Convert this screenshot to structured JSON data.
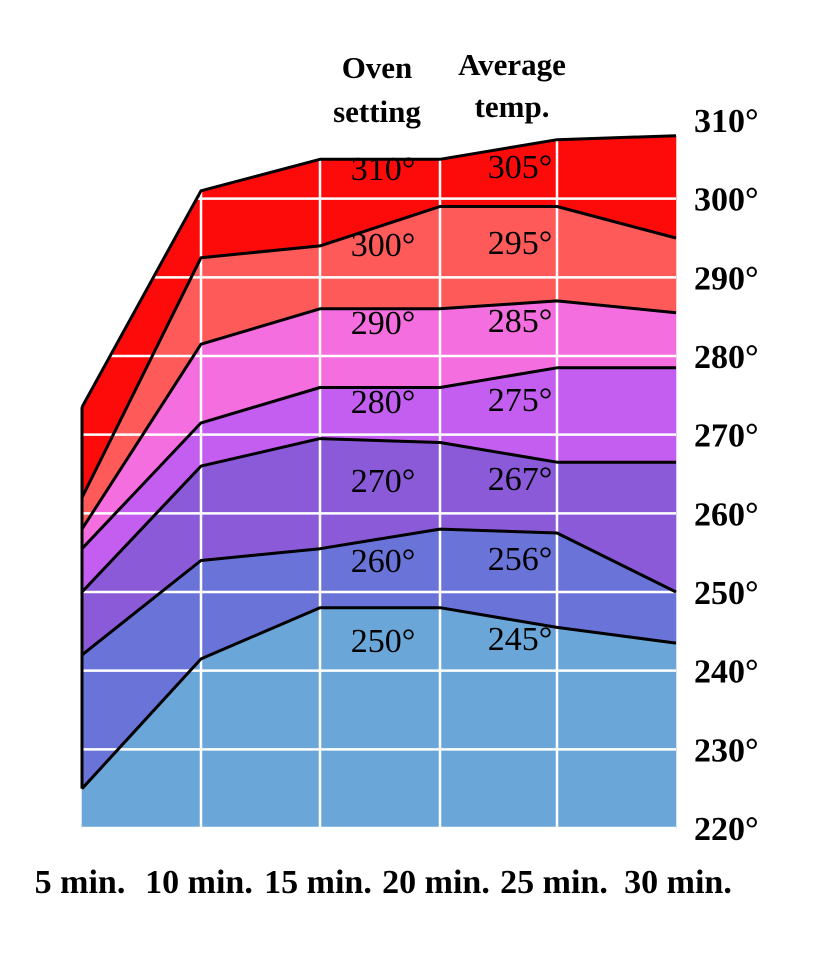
{
  "chart_data": {
    "type": "area",
    "title": "",
    "xlabel": "",
    "ylabel": "",
    "x": [
      "5 min.",
      "10 min.",
      "15 min.",
      "20 min.",
      "25 min.",
      "30 min."
    ],
    "ylim": [
      220,
      310
    ],
    "y_ticks": [
      220,
      230,
      240,
      250,
      260,
      270,
      280,
      290,
      300,
      310
    ],
    "y_tick_labels": [
      "220°",
      "230°",
      "240°",
      "250°",
      "260°",
      "270°",
      "280°",
      "290°",
      "300°",
      "310°"
    ],
    "column_headers": {
      "oven_setting_line1": "Oven",
      "oven_setting_line2": "setting",
      "average_temp_line1": "Average",
      "average_temp_line2": "temp."
    },
    "grid": true,
    "series": [
      {
        "oven_setting": "250°",
        "average_temp": "245°",
        "color": "#6aa6d8",
        "values": [
          225,
          241.5,
          248,
          248,
          245.5,
          243.5
        ]
      },
      {
        "oven_setting": "260°",
        "average_temp": "256°",
        "color": "#6a74d8",
        "values": [
          242,
          254,
          255.5,
          258,
          257.5,
          250
        ]
      },
      {
        "oven_setting": "270°",
        "average_temp": "267°",
        "color": "#8a5ad8",
        "values": [
          250,
          266,
          269.5,
          269,
          266.5,
          266.5
        ]
      },
      {
        "oven_setting": "280°",
        "average_temp": "275°",
        "color": "#c35ef0",
        "values": [
          255.5,
          271.5,
          276,
          276,
          278.5,
          278.5
        ]
      },
      {
        "oven_setting": "290°",
        "average_temp": "285°",
        "color": "#f56ee0",
        "values": [
          258,
          281.5,
          286,
          286,
          287,
          285.5
        ]
      },
      {
        "oven_setting": "300°",
        "average_temp": "295°",
        "color": "#fe5a5a",
        "values": [
          262,
          292.5,
          294,
          299,
          299,
          295
        ]
      },
      {
        "oven_setting": "310°",
        "average_temp": "305°",
        "color": "#fd0a0a",
        "values": [
          273.5,
          301,
          305,
          305,
          307.5,
          308
        ]
      }
    ]
  }
}
